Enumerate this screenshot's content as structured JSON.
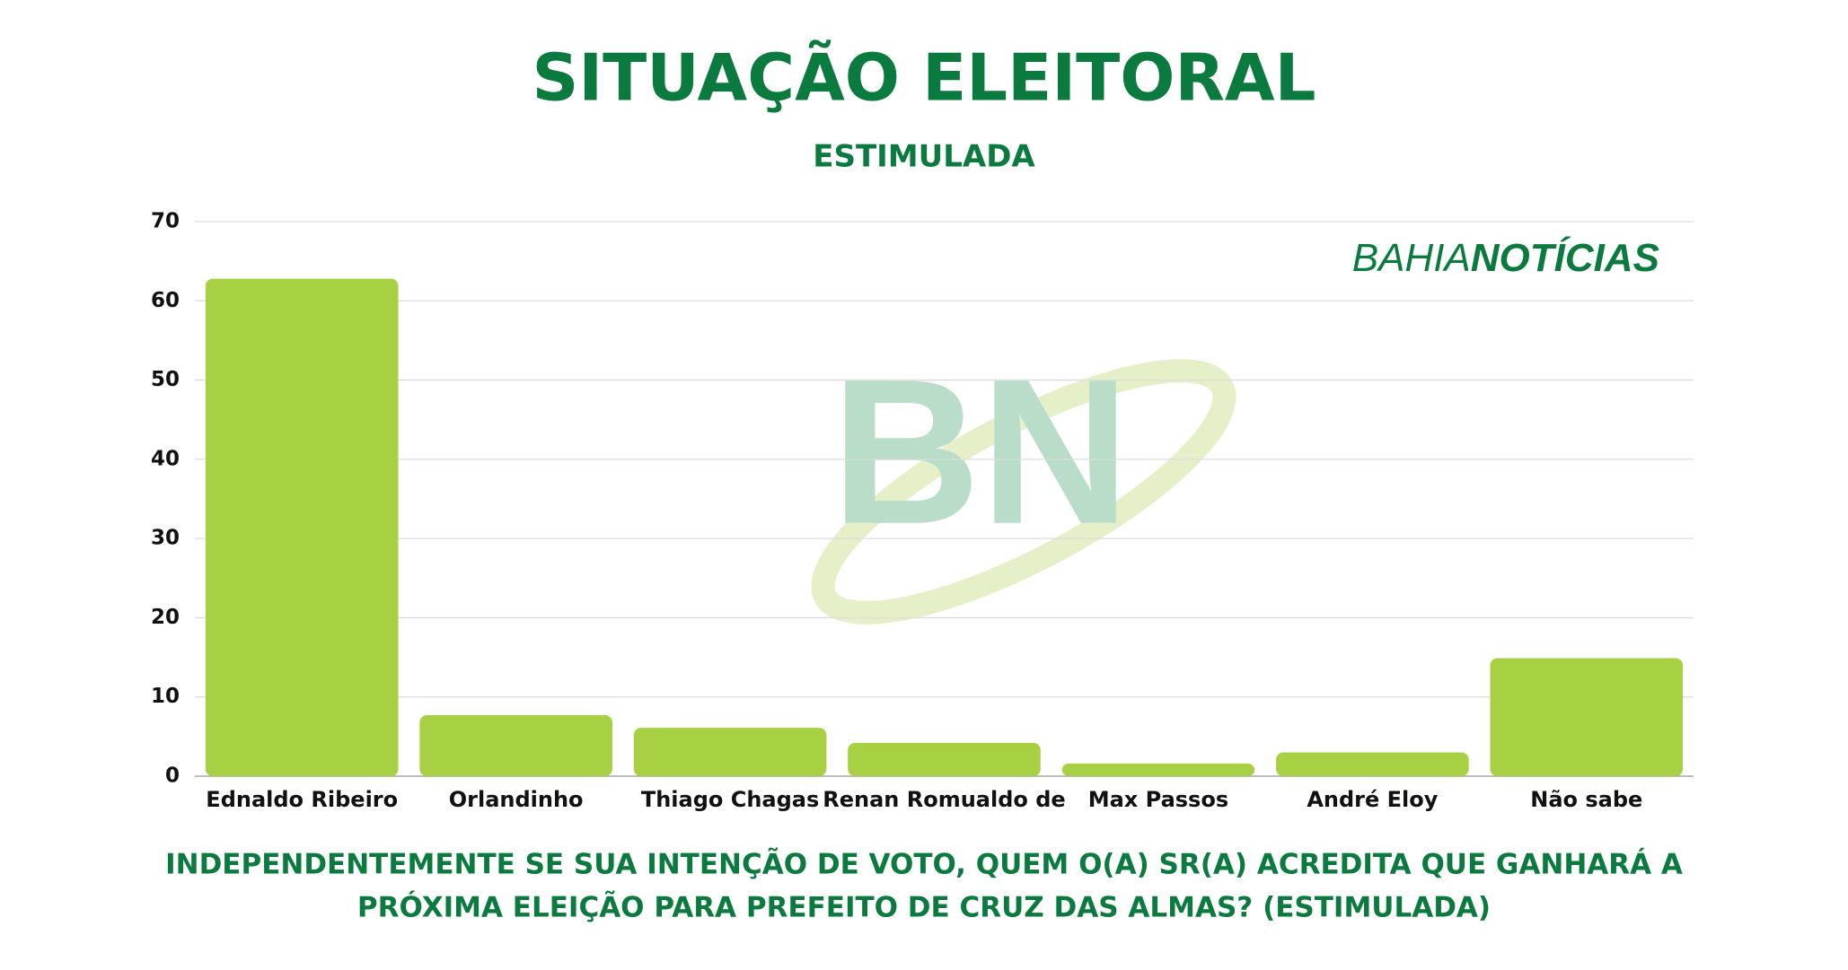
{
  "chart_data": {
    "type": "bar",
    "title": "SITUAÇÃO ELEITORAL",
    "subtitle": "ESTIMULADA",
    "categories": [
      "Ednaldo Ribeiro",
      "Orlandinho",
      "Thiago Chagas",
      "Renan Romualdo de",
      "Max Passos",
      "André Eloy",
      "Não sabe"
    ],
    "values": [
      62.8,
      7.7,
      6.1,
      4.2,
      1.6,
      3.0,
      14.9
    ],
    "color": "#a8d043",
    "ylim": [
      0,
      70
    ],
    "yticks": [
      0,
      10,
      20,
      30,
      40,
      50,
      60,
      70
    ],
    "grid": true,
    "question_lines": [
      "INDEPENDENTEMENTE SE SUA INTENÇÃO DE VOTO, QUEM O(A) SR(A) ACREDITA QUE GANHARÁ A",
      "PRÓXIMA ELEIÇÃO PARA PREFEITO DE CRUZ DAS ALMAS? (ESTIMULADA)"
    ],
    "logo": [
      "BAHIA",
      "NOTÍCIAS"
    ],
    "watermark": "BN"
  }
}
